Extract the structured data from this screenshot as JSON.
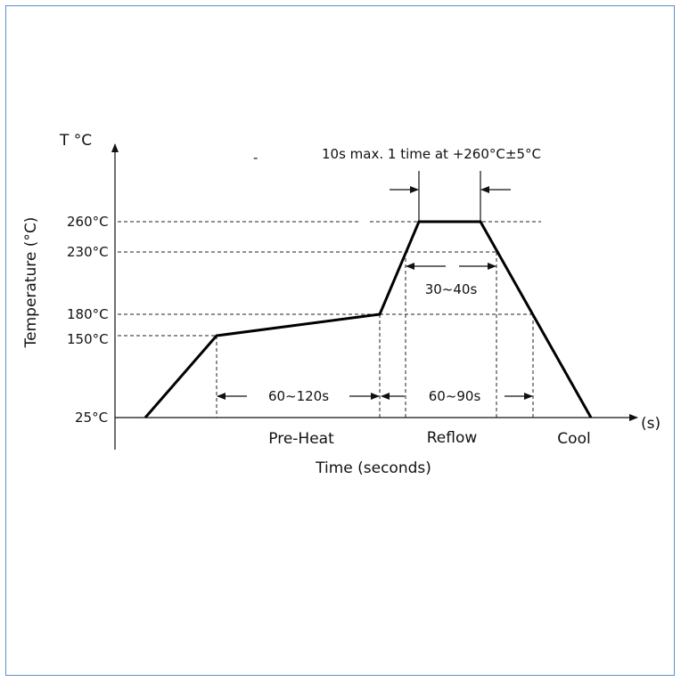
{
  "y_unit": "T °C",
  "x_unit": "(s)",
  "y_axis_title": "Temperature (°C)",
  "x_axis_title": "Time (seconds)",
  "temperature_levels": {
    "t260": "260°C",
    "t230": "230°C",
    "t180": "180°C",
    "t150": "150°C",
    "t25": "25°C"
  },
  "peak_note": "10s max. 1 time at +260°C±5°C",
  "durations": {
    "preheat": "60~120s",
    "reflow": "60~90s",
    "above230": "30~40s"
  },
  "zones": {
    "preheat": "Pre-Heat",
    "reflow": "Reflow",
    "cool": "Cool"
  },
  "stray_mark": "-"
}
